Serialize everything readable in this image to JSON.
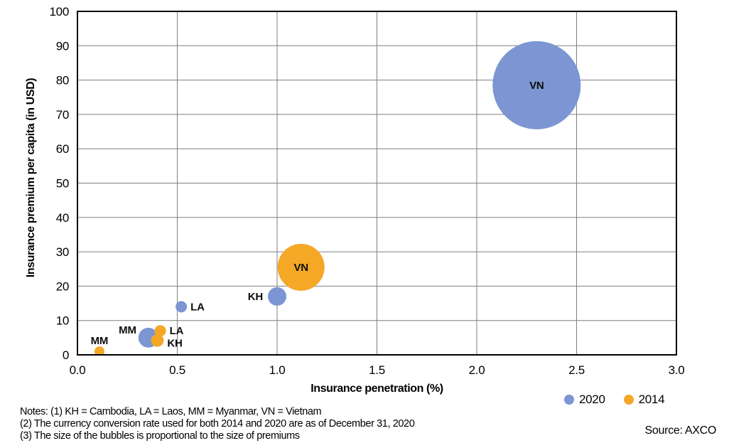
{
  "figure": {
    "source": "Source: AXCO",
    "notes": [
      "Notes: (1) KH = Cambodia, LA = Laos, MM = Myanmar, VN = Vietnam",
      "(2) The currency conversion rate used for both 2014 and 2020 are as of December 31, 2020",
      "(3) The size of the bubbles is proportional to the size of premiums"
    ]
  },
  "chart_data": {
    "type": "bubble",
    "xlabel": "Insurance penetration (%)",
    "ylabel": "Insurance premium per capita (in USD)",
    "xlim": [
      0,
      3
    ],
    "ylim": [
      0,
      100
    ],
    "xticks": [
      "0.0",
      "0.5",
      "1.0",
      "1.5",
      "2.0",
      "2.5",
      "3.0"
    ],
    "yticks": [
      "0",
      "10",
      "20",
      "30",
      "40",
      "50",
      "60",
      "70",
      "80",
      "90",
      "100"
    ],
    "grid": true,
    "grid_color": "#7f7f7f",
    "border_color": "#000000",
    "legend_position": "bottom-right",
    "legend": [
      {
        "label": "2020",
        "color": "#7B96D2"
      },
      {
        "label": "2014",
        "color": "#F5A726"
      }
    ],
    "series": [
      {
        "name": "2020",
        "color": "#7B96D2",
        "points": [
          {
            "country": "VN",
            "x": 2.3,
            "y": 78.5,
            "r": 62,
            "label_pos": "inside"
          },
          {
            "country": "KH",
            "x": 1.0,
            "y": 17.0,
            "r": 13,
            "label_pos": "left"
          },
          {
            "country": "LA",
            "x": 0.52,
            "y": 14.0,
            "r": 8,
            "label_pos": "right"
          },
          {
            "country": "MM",
            "x": 0.355,
            "y": 5.0,
            "r": 14,
            "label_pos": "above-left"
          }
        ]
      },
      {
        "name": "2014",
        "color": "#F5A726",
        "points": [
          {
            "country": "VN",
            "x": 1.12,
            "y": 25.5,
            "r": 33,
            "label_pos": "inside"
          },
          {
            "country": "LA",
            "x": 0.415,
            "y": 7.0,
            "r": 8,
            "label_pos": "right"
          },
          {
            "country": "KH",
            "x": 0.4,
            "y": 4.2,
            "r": 9,
            "label_pos": "right-below"
          },
          {
            "country": "MM",
            "x": 0.11,
            "y": 1.0,
            "r": 7,
            "label_pos": "above"
          }
        ]
      }
    ]
  }
}
